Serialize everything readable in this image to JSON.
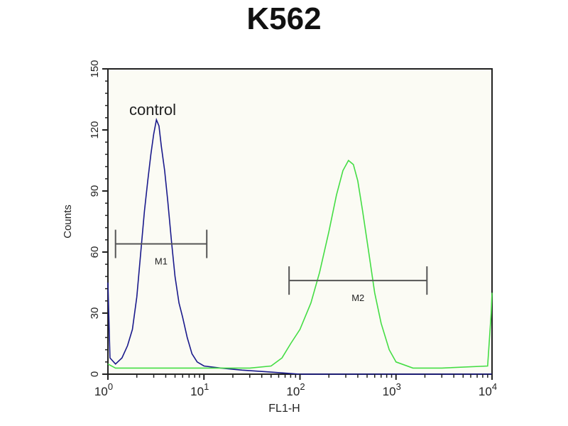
{
  "chart_data": {
    "type": "line",
    "title": "K562",
    "xlabel": "FL1-H",
    "ylabel": "Counts",
    "x_scale": "log",
    "xlim": [
      1,
      10000
    ],
    "ylim": [
      0,
      150
    ],
    "x_ticks": [
      "10^0",
      "10^1",
      "10^2",
      "10^3",
      "10^4"
    ],
    "x_tick_labels": [
      {
        "base": "10",
        "exp": "0"
      },
      {
        "base": "10",
        "exp": "1"
      },
      {
        "base": "10",
        "exp": "2"
      },
      {
        "base": "10",
        "exp": "3"
      },
      {
        "base": "10",
        "exp": "4"
      }
    ],
    "y_ticks": [
      0,
      30,
      60,
      90,
      120,
      150
    ],
    "grid": false,
    "annotations": [
      {
        "text": "control"
      }
    ],
    "markers": [
      {
        "label": "M1",
        "x_range": [
          1.2,
          10.7
        ],
        "y": 64
      },
      {
        "label": "M2",
        "x_range": [
          77,
          2100
        ],
        "y": 46
      }
    ],
    "series": [
      {
        "color": "#1a1a8c",
        "points": [
          [
            1,
            45
          ],
          [
            1.05,
            8
          ],
          [
            1.2,
            5
          ],
          [
            1.4,
            8
          ],
          [
            1.6,
            14
          ],
          [
            1.8,
            22
          ],
          [
            2.0,
            38
          ],
          [
            2.2,
            60
          ],
          [
            2.4,
            80
          ],
          [
            2.6,
            95
          ],
          [
            2.8,
            108
          ],
          [
            3.0,
            118
          ],
          [
            3.2,
            125
          ],
          [
            3.4,
            122
          ],
          [
            3.6,
            112
          ],
          [
            3.9,
            100
          ],
          [
            4.2,
            85
          ],
          [
            4.6,
            65
          ],
          [
            5.0,
            48
          ],
          [
            5.5,
            35
          ],
          [
            6,
            28
          ],
          [
            6.7,
            18
          ],
          [
            7.5,
            10
          ],
          [
            8.5,
            6
          ],
          [
            10,
            4
          ],
          [
            15,
            3
          ],
          [
            25,
            2
          ],
          [
            50,
            1
          ],
          [
            100,
            0
          ],
          [
            1000,
            0
          ],
          [
            10000,
            0
          ]
        ]
      },
      {
        "color": "#44dd44",
        "points": [
          [
            1,
            5
          ],
          [
            1.2,
            3
          ],
          [
            3,
            3
          ],
          [
            10,
            3
          ],
          [
            30,
            3
          ],
          [
            50,
            4
          ],
          [
            65,
            8
          ],
          [
            80,
            15
          ],
          [
            100,
            22
          ],
          [
            130,
            35
          ],
          [
            160,
            50
          ],
          [
            200,
            70
          ],
          [
            240,
            88
          ],
          [
            280,
            100
          ],
          [
            320,
            105
          ],
          [
            360,
            103
          ],
          [
            400,
            95
          ],
          [
            450,
            80
          ],
          [
            520,
            60
          ],
          [
            600,
            40
          ],
          [
            700,
            25
          ],
          [
            850,
            12
          ],
          [
            1000,
            6
          ],
          [
            1500,
            3
          ],
          [
            3000,
            3
          ],
          [
            9000,
            4
          ],
          [
            9800,
            30
          ],
          [
            10000,
            40
          ]
        ]
      }
    ]
  }
}
